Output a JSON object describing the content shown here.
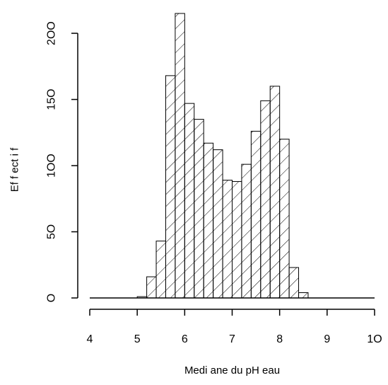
{
  "chart_data": {
    "type": "bar",
    "subtype": "histogram",
    "bin_width": 0.2,
    "bins": [
      {
        "from": 5.0,
        "to": 5.2,
        "count": 1
      },
      {
        "from": 5.2,
        "to": 5.4,
        "count": 16
      },
      {
        "from": 5.4,
        "to": 5.6,
        "count": 43
      },
      {
        "from": 5.6,
        "to": 5.8,
        "count": 168
      },
      {
        "from": 5.8,
        "to": 6.0,
        "count": 215
      },
      {
        "from": 6.0,
        "to": 6.2,
        "count": 147
      },
      {
        "from": 6.2,
        "to": 6.4,
        "count": 135
      },
      {
        "from": 6.4,
        "to": 6.6,
        "count": 117
      },
      {
        "from": 6.6,
        "to": 6.8,
        "count": 112
      },
      {
        "from": 6.8,
        "to": 7.0,
        "count": 89
      },
      {
        "from": 7.0,
        "to": 7.2,
        "count": 88
      },
      {
        "from": 7.2,
        "to": 7.4,
        "count": 101
      },
      {
        "from": 7.4,
        "to": 7.6,
        "count": 126
      },
      {
        "from": 7.6,
        "to": 7.8,
        "count": 149
      },
      {
        "from": 7.8,
        "to": 8.0,
        "count": 160
      },
      {
        "from": 8.0,
        "to": 8.2,
        "count": 120
      },
      {
        "from": 8.2,
        "to": 8.4,
        "count": 23
      },
      {
        "from": 8.4,
        "to": 8.6,
        "count": 4
      }
    ],
    "baseline_range": [
      4,
      10
    ],
    "fill": "diagonal-hatch",
    "stroke_color": "#000000",
    "background_color": "#ffffff",
    "xlabel": "Medi ane du pH eau",
    "ylabel": "Ef f ect i f",
    "xlim": [
      4,
      10
    ],
    "ylim": [
      0,
      215
    ],
    "x_ticks": [
      4,
      5,
      6,
      7,
      8,
      9,
      10
    ],
    "x_tick_labels": [
      "4",
      "5",
      "6",
      "7",
      "8",
      "9",
      "1O"
    ],
    "y_ticks": [
      0,
      50,
      100,
      150,
      200
    ],
    "y_tick_labels": [
      "O",
      "5O",
      "1OO",
      "15O",
      "2OO"
    ],
    "grid": false,
    "legend": "none"
  }
}
